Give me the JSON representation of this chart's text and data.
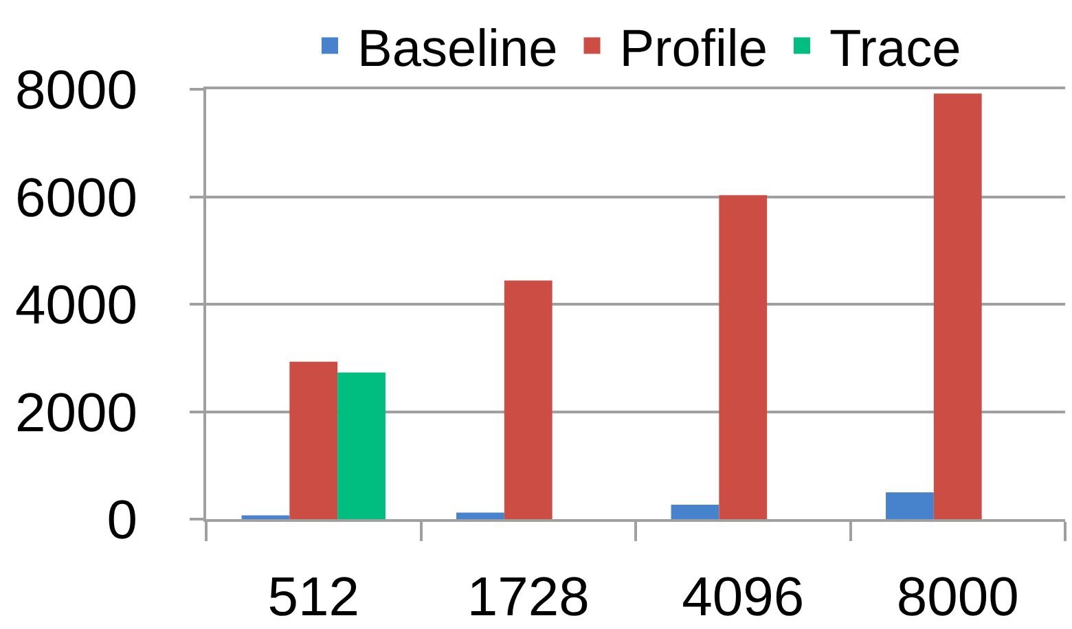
{
  "chart_data": {
    "type": "bar",
    "categories": [
      "512",
      "1728",
      "4096",
      "8000"
    ],
    "series": [
      {
        "name": "Baseline",
        "color": "#4683cc",
        "values": [
          70,
          120,
          270,
          500
        ]
      },
      {
        "name": "Profile",
        "color": "#cc4d43",
        "values": [
          2930,
          4440,
          6030,
          7920
        ]
      },
      {
        "name": "Trace",
        "color": "#00be80",
        "values": [
          2730,
          null,
          null,
          null
        ]
      }
    ],
    "ylim": [
      0,
      8000
    ],
    "yticks": [
      0,
      2000,
      4000,
      6000,
      8000
    ],
    "grid": "y",
    "legend": "top"
  }
}
